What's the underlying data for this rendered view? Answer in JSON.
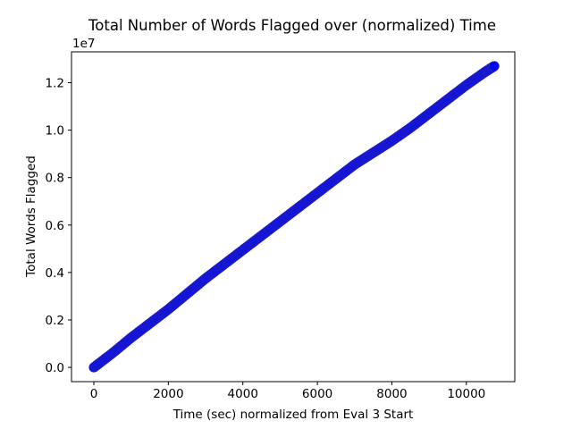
{
  "chart_data": {
    "type": "scatter",
    "title": "Total Number of Words Flagged over (normalized) Time",
    "xlabel": "Time (sec) normalized from Eval 3 Start",
    "ylabel": "Total Words Flagged",
    "offset_label": "1e7",
    "xlim": [
      -600,
      11300
    ],
    "ylim": [
      -0.06,
      1.33
    ],
    "y_multiplier": 10000000,
    "xticks": [
      0,
      2000,
      4000,
      6000,
      8000,
      10000
    ],
    "xtick_labels": [
      "0",
      "2000",
      "4000",
      "6000",
      "8000",
      "10000"
    ],
    "yticks": [
      0.0,
      0.2,
      0.4,
      0.6,
      0.8,
      1.0,
      1.2
    ],
    "ytick_labels": [
      "0.0",
      "0.2",
      "0.4",
      "0.6",
      "0.8",
      "1.0",
      "1.2"
    ],
    "grid": false,
    "marker_color": "#0000ff",
    "marker_edge_color": "#1a1acc",
    "series": [
      {
        "x": [
          0,
          500,
          1000,
          1500,
          2000,
          2500,
          3000,
          3500,
          4000,
          4500,
          5000,
          5500,
          6000,
          6500,
          7000,
          7500,
          8000,
          8500,
          9000,
          9500,
          10000,
          10500,
          10750
        ],
        "values": [
          0.0,
          0.06,
          0.125,
          0.185,
          0.245,
          0.31,
          0.375,
          0.435,
          0.495,
          0.555,
          0.615,
          0.675,
          0.735,
          0.795,
          0.855,
          0.905,
          0.955,
          1.01,
          1.07,
          1.13,
          1.19,
          1.245,
          1.27
        ]
      }
    ]
  }
}
